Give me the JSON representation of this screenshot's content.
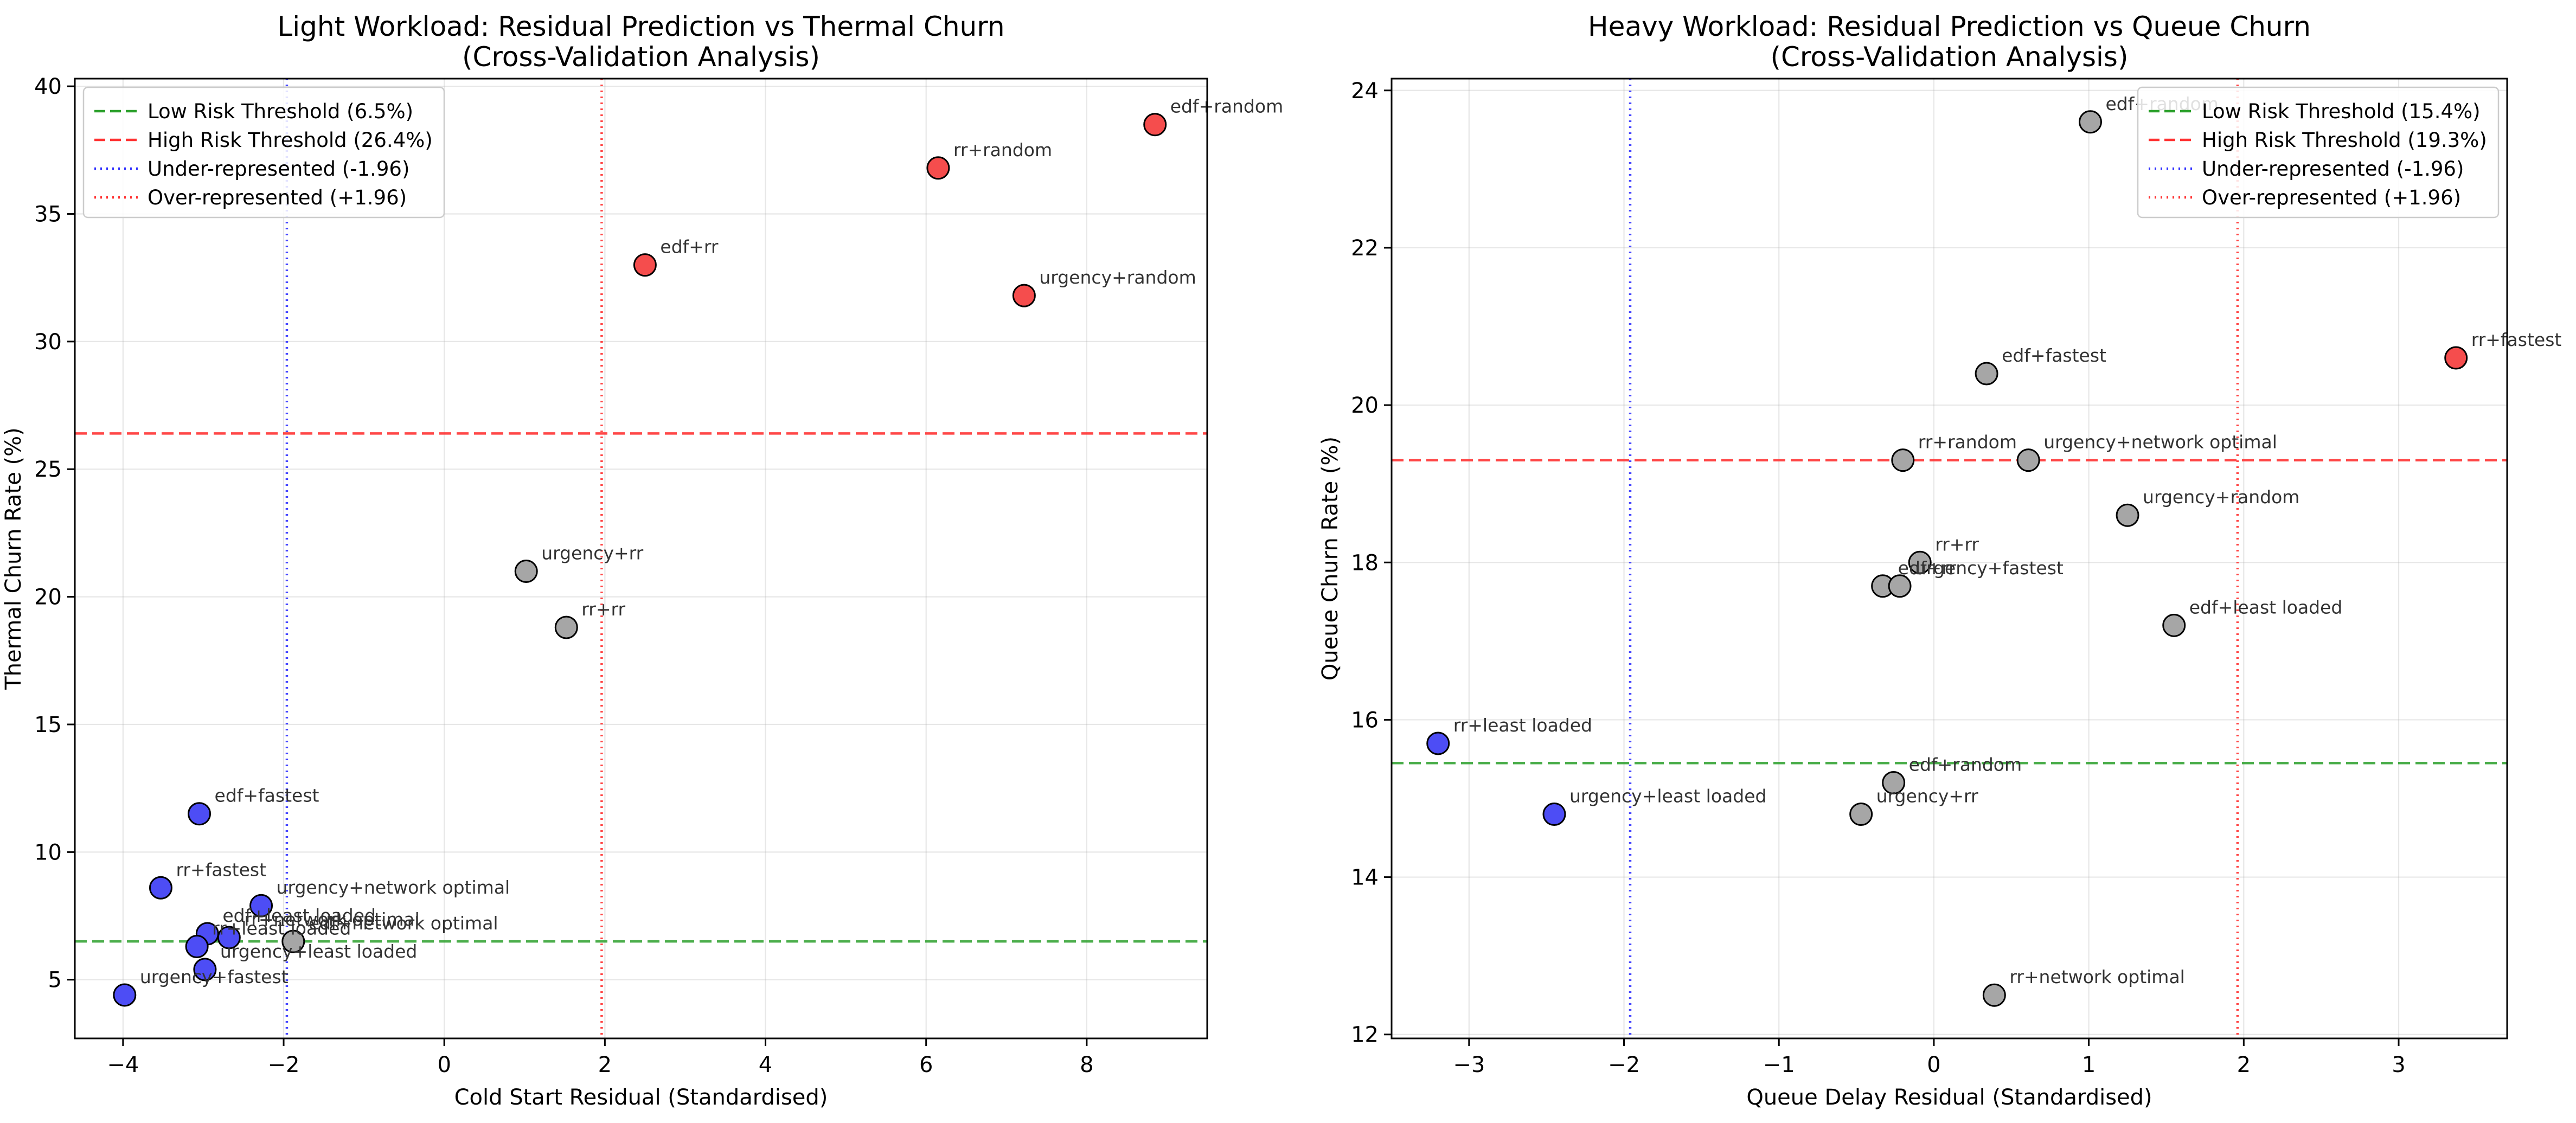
{
  "chart_data": [
    {
      "type": "scatter",
      "title": "Light Workload: Residual Prediction vs Thermal Churn",
      "subtitle": "(Cross-Validation Analysis)",
      "xlabel": "Cold Start Residual (Standardised)",
      "ylabel": "Thermal Churn Rate (%)",
      "xlim": [
        -4.6,
        9.5
      ],
      "ylim": [
        2.7,
        40.3
      ],
      "xticks": [
        -4,
        -2,
        0,
        2,
        4,
        6,
        8
      ],
      "yticks": [
        5,
        10,
        15,
        20,
        25,
        30,
        35,
        40
      ],
      "grid": true,
      "legend_position": "top-left",
      "colors": {
        "under": "#0000ee",
        "neutral": "#808080",
        "over": "#ee0000"
      },
      "low_threshold": 6.5,
      "high_threshold": 26.4,
      "under_line": -1.96,
      "over_line": 1.96,
      "legend": [
        {
          "label": "Low Risk Threshold (6.5%)",
          "style": "dashed",
          "color": "#2ca02c"
        },
        {
          "label": "High Risk Threshold (26.4%)",
          "style": "dashed",
          "color": "#ff3333"
        },
        {
          "label": "Under-represented (-1.96)",
          "style": "dotted",
          "color": "#3333ff"
        },
        {
          "label": "Over-represented (+1.96)",
          "style": "dotted",
          "color": "#ff3333"
        }
      ],
      "points": [
        {
          "label": "edf+random",
          "x": 8.85,
          "y": 38.5,
          "group": "over"
        },
        {
          "label": "rr+random",
          "x": 6.15,
          "y": 36.8,
          "group": "over"
        },
        {
          "label": "edf+rr",
          "x": 2.5,
          "y": 33.0,
          "group": "over"
        },
        {
          "label": "urgency+random",
          "x": 7.22,
          "y": 31.8,
          "group": "over"
        },
        {
          "label": "urgency+rr",
          "x": 1.02,
          "y": 21.0,
          "group": "neutral"
        },
        {
          "label": "rr+rr",
          "x": 1.52,
          "y": 18.8,
          "group": "neutral"
        },
        {
          "label": "edf+fastest",
          "x": -3.05,
          "y": 11.5,
          "group": "under"
        },
        {
          "label": "rr+fastest",
          "x": -3.53,
          "y": 8.6,
          "group": "under"
        },
        {
          "label": "urgency+network optimal",
          "x": -2.28,
          "y": 7.9,
          "group": "under"
        },
        {
          "label": "edf+least loaded",
          "x": -2.95,
          "y": 6.8,
          "group": "under"
        },
        {
          "label": "rr+network optimal",
          "x": -2.68,
          "y": 6.65,
          "group": "under"
        },
        {
          "label": "edf+network optimal",
          "x": -1.88,
          "y": 6.5,
          "group": "neutral"
        },
        {
          "label": "rr+least loaded",
          "x": -3.08,
          "y": 6.3,
          "group": "under"
        },
        {
          "label": "urgency+least loaded",
          "x": -2.98,
          "y": 5.4,
          "group": "under"
        },
        {
          "label": "urgency+fastest",
          "x": -3.98,
          "y": 4.4,
          "group": "under"
        }
      ]
    },
    {
      "type": "scatter",
      "title": "Heavy Workload: Residual Prediction vs Queue Churn",
      "subtitle": "(Cross-Validation Analysis)",
      "xlabel": "Queue Delay Residual (Standardised)",
      "ylabel": "Queue Churn Rate (%)",
      "xlim": [
        -3.5,
        3.7
      ],
      "ylim": [
        11.95,
        24.15
      ],
      "xticks": [
        -3,
        -2,
        -1,
        0,
        1,
        2,
        3
      ],
      "yticks": [
        12,
        14,
        16,
        18,
        20,
        22,
        24
      ],
      "grid": true,
      "legend_position": "top-right",
      "colors": {
        "under": "#0000ee",
        "neutral": "#808080",
        "over": "#ee0000"
      },
      "low_threshold": 15.45,
      "high_threshold": 19.3,
      "under_line": -1.96,
      "over_line": 1.96,
      "legend": [
        {
          "label": "Low Risk Threshold (15.4%)",
          "style": "dashed",
          "color": "#2ca02c"
        },
        {
          "label": "High Risk Threshold (19.3%)",
          "style": "dashed",
          "color": "#ff3333"
        },
        {
          "label": "Under-represented (-1.96)",
          "style": "dotted",
          "color": "#3333ff"
        },
        {
          "label": "Over-represented (+1.96)",
          "style": "dotted",
          "color": "#ff3333"
        }
      ],
      "points": [
        {
          "label": "edf+random",
          "x": 1.01,
          "y": 23.6,
          "group": "neutral"
        },
        {
          "label": "rr+fastest",
          "x": 3.37,
          "y": 20.6,
          "group": "over"
        },
        {
          "label": "edf+fastest",
          "x": 0.34,
          "y": 20.4,
          "group": "neutral"
        },
        {
          "label": "rr+random",
          "x": -0.2,
          "y": 19.3,
          "group": "neutral"
        },
        {
          "label": "urgency+network optimal",
          "x": 0.61,
          "y": 19.3,
          "group": "neutral"
        },
        {
          "label": "urgency+random",
          "x": 1.25,
          "y": 18.6,
          "group": "neutral"
        },
        {
          "label": "rr+rr",
          "x": -0.09,
          "y": 18.0,
          "group": "neutral"
        },
        {
          "label": "edf+rr",
          "x": -0.33,
          "y": 17.7,
          "group": "neutral"
        },
        {
          "label": "urgency+fastest",
          "x": -0.22,
          "y": 17.7,
          "group": "neutral"
        },
        {
          "label": "edf+least loaded",
          "x": 1.55,
          "y": 17.2,
          "group": "neutral"
        },
        {
          "label": "rr+least loaded",
          "x": -3.2,
          "y": 15.7,
          "group": "under"
        },
        {
          "label": "edf+random",
          "x": -0.26,
          "y": 15.2,
          "group": "neutral"
        },
        {
          "label": "urgency+least loaded",
          "x": -2.45,
          "y": 14.8,
          "group": "under"
        },
        {
          "label": "urgency+rr",
          "x": -0.47,
          "y": 14.8,
          "group": "neutral"
        },
        {
          "label": "rr+network optimal",
          "x": 0.39,
          "y": 12.5,
          "group": "neutral"
        }
      ]
    }
  ]
}
